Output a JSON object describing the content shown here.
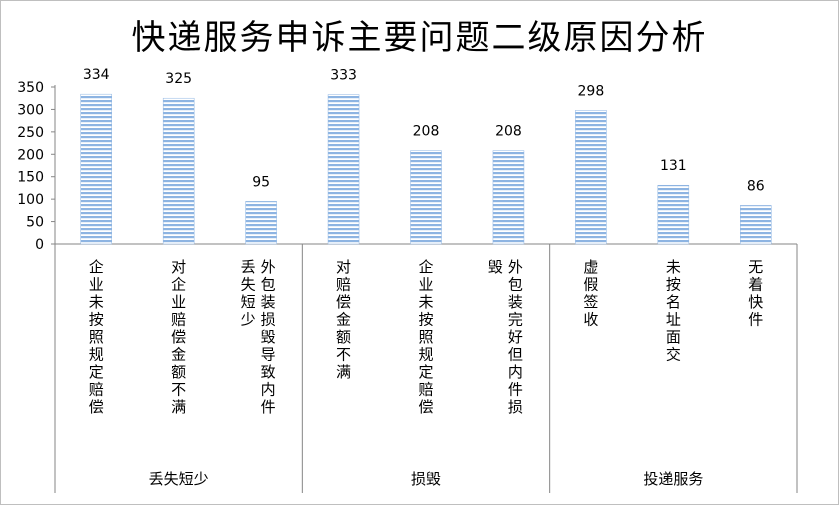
{
  "chart_data": {
    "type": "bar",
    "title": "快递服务申诉主要问题二级原因分析",
    "xlabel": "",
    "ylabel": "",
    "ylim": [
      0,
      350
    ],
    "yticks": [
      0,
      50,
      100,
      150,
      200,
      250,
      300,
      350
    ],
    "grid": false,
    "bar_color": "#9dc3e6",
    "groups": [
      {
        "label": "丢失短少",
        "categories": [
          0,
          1,
          2
        ]
      },
      {
        "label": "损毁",
        "categories": [
          3,
          4,
          5
        ]
      },
      {
        "label": "投递服务",
        "categories": [
          6,
          7,
          8
        ]
      }
    ],
    "categories": [
      "企业未按照规定赔偿",
      "对企业赔偿金额不满",
      "外包装损毁导致内件丢失短少",
      "对赔偿金额不满",
      "企业未按照规定赔偿",
      "外包装完好但内件损毁",
      "虚假签收",
      "未按名址面交",
      "无着快件"
    ],
    "values": [
      334,
      325,
      95,
      333,
      208,
      208,
      298,
      131,
      86
    ]
  }
}
